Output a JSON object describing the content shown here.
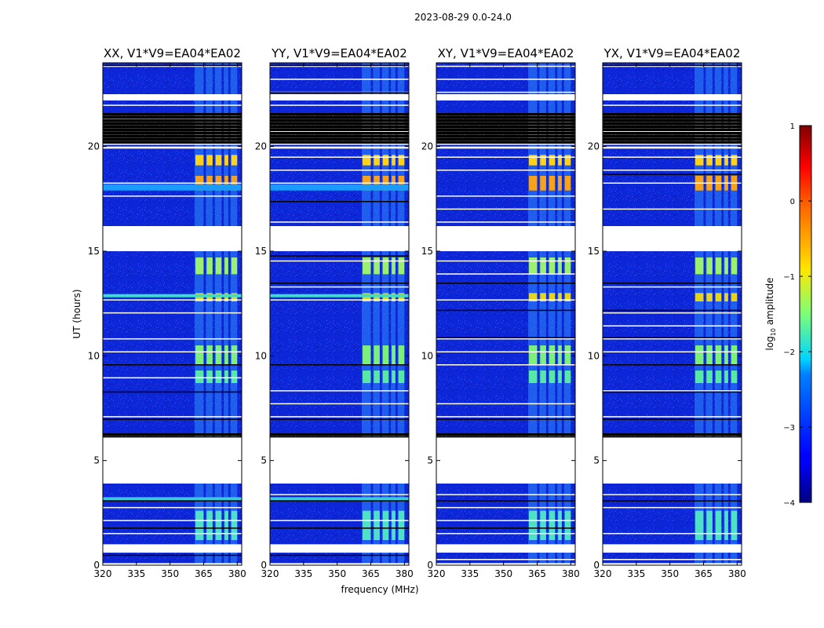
{
  "chart_data": {
    "type": "heatmap",
    "suptitle": "2023-08-29 0.0-24.0",
    "xlabel": "frequency (MHz)",
    "ylabel": "UT (hours)",
    "xlim": [
      320,
      382
    ],
    "ylim": [
      0,
      24
    ],
    "xticks": [
      "320",
      "335",
      "350",
      "365",
      "380"
    ],
    "yticks": [
      "0",
      "5",
      "10",
      "15",
      "20"
    ],
    "panels": [
      {
        "title": "XX, V1*V9=EA04*EA02",
        "pol": "XX"
      },
      {
        "title": "YY, V1*V9=EA04*EA02",
        "pol": "YY"
      },
      {
        "title": "XY, V1*V9=EA04*EA02",
        "pol": "XY"
      },
      {
        "title": "YX, V1*V9=EA04*EA02",
        "pol": "YX"
      }
    ],
    "colorbar": {
      "label": "log10 amplitude",
      "label_main": "log",
      "label_sub": "10",
      "label_rest": " amplitude",
      "range": [
        -4,
        1
      ],
      "ticks": [
        "1",
        "0",
        "−1",
        "−2",
        "−3",
        "−4"
      ],
      "colormap": "jet"
    },
    "gaps_hours": [
      [
        0.0,
        0.1
      ],
      [
        0.6,
        1.0
      ],
      [
        3.9,
        6.1
      ],
      [
        15.0,
        16.2
      ],
      [
        19.9,
        20.0
      ],
      [
        22.2,
        22.5
      ]
    ],
    "dark_bands_hours": [
      [
        20.2,
        21.6
      ],
      [
        6.1,
        6.3
      ]
    ],
    "rfi_bands_mhz": [
      [
        361,
        365
      ],
      [
        366,
        369
      ],
      [
        370,
        373
      ],
      [
        374,
        376
      ],
      [
        377,
        380
      ]
    ]
  }
}
